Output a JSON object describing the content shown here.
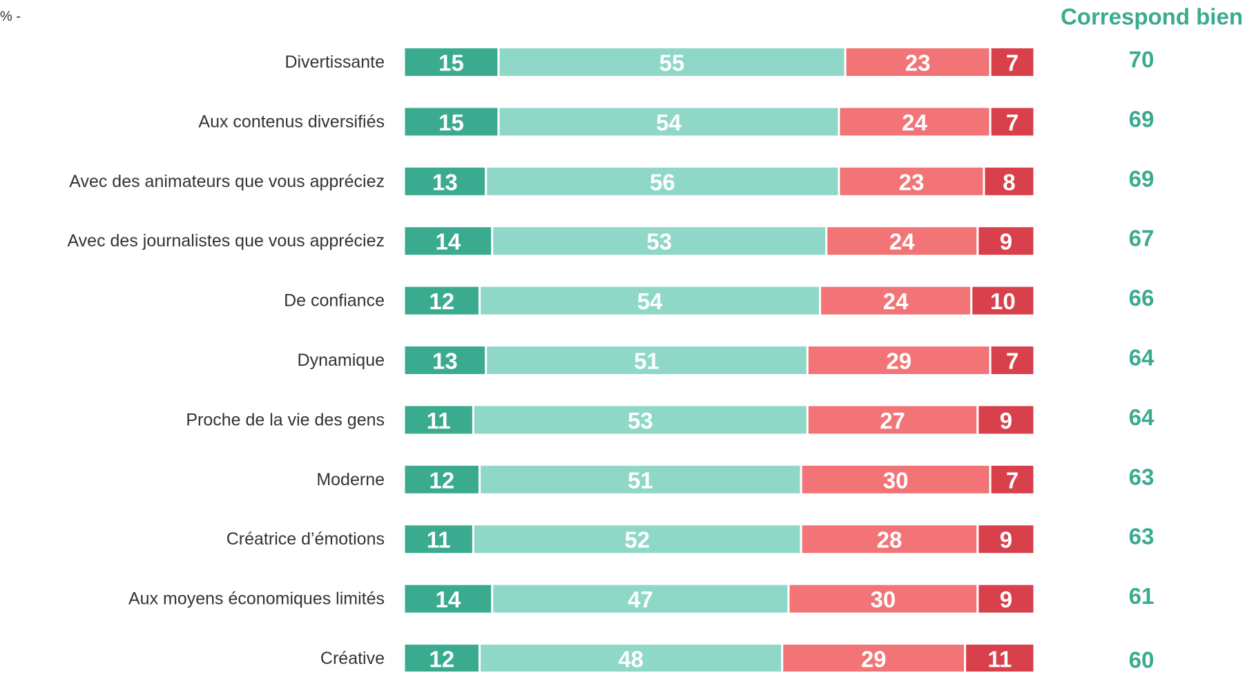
{
  "chart_data": {
    "type": "bar",
    "orientation": "horizontal",
    "stacked": true,
    "note": "% -",
    "categories": [
      "Divertissante",
      "Aux contenus diversifiés",
      "Avec des animateurs que vous appréciez",
      "Avec des journalistes que vous appréciez",
      "De confiance",
      "Dynamique",
      "Proche de la vie des gens",
      "Moderne",
      "Créatrice d’émotions",
      "Aux moyens économiques limités",
      "Créative"
    ],
    "xlim": [
      0,
      100
    ],
    "series": [
      {
        "color": "#3aab8f",
        "values": [
          15,
          15,
          13,
          14,
          12,
          13,
          11,
          12,
          11,
          14,
          12
        ]
      },
      {
        "color": "#8fd8c8",
        "values": [
          55,
          54,
          56,
          53,
          54,
          51,
          53,
          51,
          52,
          47,
          48
        ]
      },
      {
        "color": "#f27476",
        "values": [
          23,
          24,
          23,
          24,
          24,
          29,
          27,
          30,
          28,
          30,
          29
        ]
      },
      {
        "color": "#d8404b",
        "values": [
          7,
          7,
          8,
          9,
          10,
          7,
          9,
          7,
          9,
          9,
          11
        ]
      }
    ],
    "summary": {
      "title": "Correspond bien",
      "color": "#3aab8f",
      "values": [
        70,
        69,
        69,
        67,
        66,
        64,
        64,
        63,
        63,
        61,
        60
      ]
    }
  }
}
